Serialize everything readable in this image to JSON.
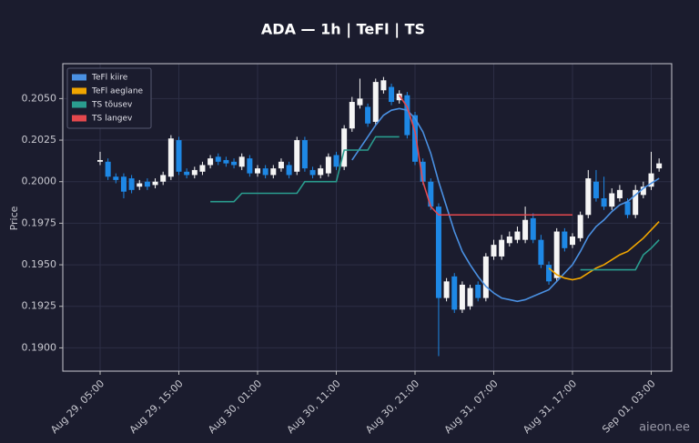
{
  "chart_data": {
    "type": "candlestick",
    "title": "ADA — 1h  |  TeFl  |  TS",
    "y_label": "Price",
    "watermark": "aieon.ee",
    "categories": [
      "Aug 29, 05:00",
      null,
      null,
      null,
      null,
      null,
      null,
      null,
      null,
      null,
      "Aug 29, 15:00",
      null,
      null,
      null,
      null,
      null,
      null,
      null,
      null,
      null,
      "Aug 30, 01:00",
      null,
      null,
      null,
      null,
      null,
      null,
      null,
      null,
      null,
      "Aug 30, 11:00",
      null,
      null,
      null,
      null,
      null,
      null,
      null,
      null,
      null,
      "Aug 30, 21:00",
      null,
      null,
      null,
      null,
      null,
      null,
      null,
      null,
      null,
      "Aug 31, 07:00",
      null,
      null,
      null,
      null,
      null,
      null,
      null,
      null,
      null,
      "Aug 31, 17:00",
      null,
      null,
      null,
      null,
      null,
      null,
      null,
      null,
      null,
      "Sep 01, 03:00",
      null
    ],
    "open": [
      0.2012,
      0.2012,
      0.2003,
      0.2003,
      0.2002,
      0.1997,
      0.2,
      0.1998,
      0.2,
      0.2003,
      0.2025,
      0.2006,
      0.2004,
      0.2006,
      0.201,
      0.2015,
      0.2013,
      0.2012,
      0.2009,
      0.2014,
      0.2005,
      0.2008,
      0.2004,
      0.2008,
      0.201,
      0.2006,
      0.2025,
      0.2007,
      0.2004,
      0.2005,
      0.2016,
      0.2009,
      0.2032,
      0.2046,
      0.2045,
      0.2036,
      0.2055,
      0.2057,
      0.2049,
      0.2052,
      0.204,
      0.2012,
      0.2,
      0.1985,
      0.193,
      0.1943,
      0.1923,
      0.1925,
      0.1938,
      0.193,
      0.1955,
      0.1955,
      0.1963,
      0.1965,
      0.1965,
      0.1978,
      0.1965,
      0.195,
      0.1942,
      0.197,
      0.1962,
      0.1966,
      0.198,
      0.2,
      0.199,
      0.1985,
      0.199,
      0.1988,
      0.198,
      0.1992,
      0.1997,
      0.2008
    ],
    "high": [
      0.2018,
      0.2014,
      0.2005,
      0.2005,
      0.2004,
      0.2001,
      0.2002,
      0.2002,
      0.2006,
      0.2028,
      0.2027,
      0.2008,
      0.2009,
      0.2012,
      0.2016,
      0.2017,
      0.2015,
      0.2014,
      0.2017,
      0.2016,
      0.201,
      0.201,
      0.201,
      0.2014,
      0.2012,
      0.2027,
      0.2027,
      0.2009,
      0.201,
      0.2017,
      0.2018,
      0.2034,
      0.2051,
      0.2062,
      0.2047,
      0.2062,
      0.2063,
      0.2059,
      0.2055,
      0.2054,
      0.2042,
      0.2014,
      0.2002,
      0.1987,
      0.1942,
      0.1945,
      0.194,
      0.1938,
      0.194,
      0.1957,
      0.1965,
      0.1968,
      0.197,
      0.1973,
      0.1985,
      0.1981,
      0.1968,
      0.1952,
      0.1972,
      0.1972,
      0.1969,
      0.1982,
      0.2007,
      0.2007,
      0.2003,
      0.1996,
      0.1998,
      0.199,
      0.1998,
      0.2,
      0.2018,
      0.2014
    ],
    "low": [
      0.201,
      0.2001,
      0.1999,
      0.199,
      0.1993,
      0.1995,
      0.1995,
      0.1996,
      0.1998,
      0.2001,
      0.2004,
      0.2002,
      0.2002,
      0.2004,
      0.2008,
      0.201,
      0.2009,
      0.2008,
      0.2007,
      0.2003,
      0.2003,
      0.2002,
      0.2002,
      0.2006,
      0.2002,
      0.2004,
      0.2006,
      0.2002,
      0.2002,
      0.2003,
      0.2007,
      0.2007,
      0.203,
      0.2044,
      0.2033,
      0.2034,
      0.2053,
      0.2046,
      0.2047,
      0.2026,
      0.201,
      0.1998,
      0.1983,
      0.1895,
      0.1928,
      0.1921,
      0.1921,
      0.1923,
      0.1928,
      0.1928,
      0.1953,
      0.1953,
      0.1961,
      0.1963,
      0.1963,
      0.1963,
      0.1948,
      0.1938,
      0.194,
      0.1958,
      0.196,
      0.1964,
      0.1978,
      0.1988,
      0.1983,
      0.1983,
      0.1988,
      0.1978,
      0.1978,
      0.199,
      0.1995,
      0.2006
    ],
    "close": [
      0.2013,
      0.2003,
      0.2001,
      0.1994,
      0.1995,
      0.1999,
      0.1997,
      0.2,
      0.2004,
      0.2026,
      0.2006,
      0.2004,
      0.2007,
      0.201,
      0.2014,
      0.2012,
      0.2011,
      0.201,
      0.2015,
      0.2005,
      0.2008,
      0.2004,
      0.2008,
      0.2012,
      0.2004,
      0.2025,
      0.2008,
      0.2004,
      0.2008,
      0.2015,
      0.2009,
      0.2032,
      0.2048,
      0.205,
      0.2035,
      0.206,
      0.2061,
      0.2048,
      0.2053,
      0.2028,
      0.2012,
      0.2,
      0.1985,
      0.193,
      0.194,
      0.1923,
      0.1938,
      0.1936,
      0.193,
      0.1955,
      0.1962,
      0.1965,
      0.1967,
      0.197,
      0.1977,
      0.1965,
      0.195,
      0.194,
      0.197,
      0.196,
      0.1967,
      0.198,
      0.2002,
      0.199,
      0.1985,
      0.1993,
      0.1995,
      0.198,
      0.1995,
      0.1997,
      0.2005,
      0.2011
    ],
    "up_color": "#f5f5f5",
    "down_color": "#1e88e5",
    "series": [
      {
        "name": "TeFl kiire",
        "color": "#4a90e2",
        "values": [
          null,
          null,
          null,
          null,
          null,
          null,
          null,
          null,
          null,
          null,
          null,
          null,
          null,
          null,
          null,
          null,
          null,
          null,
          null,
          null,
          null,
          null,
          null,
          null,
          null,
          null,
          null,
          null,
          null,
          null,
          null,
          null,
          0.2013,
          0.202,
          0.2027,
          0.2034,
          0.204,
          0.2043,
          0.2044,
          0.2043,
          0.2038,
          0.203,
          0.2017,
          0.2,
          0.1985,
          0.197,
          0.1958,
          0.195,
          0.1943,
          0.1937,
          0.1933,
          0.193,
          0.1929,
          0.1928,
          0.1929,
          0.1931,
          0.1933,
          0.1935,
          0.194,
          0.1945,
          0.195,
          0.1958,
          0.1967,
          0.1973,
          0.1977,
          0.1982,
          0.1986,
          0.1988,
          0.1992,
          0.1996,
          0.1999,
          0.2002
        ]
      },
      {
        "name": "TeFl aeglane",
        "color": "#f0a500",
        "values": [
          null,
          null,
          null,
          null,
          null,
          null,
          null,
          null,
          null,
          null,
          null,
          null,
          null,
          null,
          null,
          null,
          null,
          null,
          null,
          null,
          null,
          null,
          null,
          null,
          null,
          null,
          null,
          null,
          null,
          null,
          null,
          null,
          null,
          null,
          null,
          null,
          null,
          null,
          null,
          null,
          null,
          null,
          null,
          null,
          null,
          null,
          null,
          null,
          null,
          null,
          null,
          null,
          null,
          null,
          null,
          null,
          null,
          0.1948,
          0.1944,
          0.1942,
          0.1941,
          0.1942,
          0.1945,
          0.1948,
          0.195,
          0.1953,
          0.1956,
          0.1958,
          0.1962,
          0.1966,
          0.1971,
          0.1976
        ]
      },
      {
        "name": "TS tõusev",
        "color": "#2a9d8f",
        "values": [
          null,
          null,
          null,
          null,
          null,
          null,
          null,
          null,
          null,
          null,
          null,
          null,
          null,
          null,
          0.1988,
          0.1988,
          0.1988,
          0.1988,
          0.1993,
          0.1993,
          0.1993,
          0.1993,
          0.1993,
          0.1993,
          0.1993,
          0.1993,
          0.2,
          0.2,
          0.2,
          0.2,
          0.2,
          0.2019,
          0.2019,
          0.2019,
          0.2019,
          0.2027,
          0.2027,
          0.2027,
          0.2027,
          null,
          null,
          null,
          null,
          null,
          null,
          null,
          null,
          null,
          null,
          null,
          null,
          null,
          null,
          null,
          null,
          null,
          null,
          null,
          null,
          null,
          null,
          0.1947,
          0.1947,
          0.1947,
          0.1947,
          0.1947,
          0.1947,
          0.1947,
          0.1947,
          0.1956,
          0.196,
          0.1965
        ]
      },
      {
        "name": "TS langev",
        "color": "#e5484d",
        "values": [
          null,
          null,
          null,
          null,
          null,
          null,
          null,
          null,
          null,
          null,
          null,
          null,
          null,
          null,
          null,
          null,
          null,
          null,
          null,
          null,
          null,
          null,
          null,
          null,
          null,
          null,
          null,
          null,
          null,
          null,
          null,
          null,
          null,
          null,
          null,
          null,
          null,
          null,
          0.2052,
          0.2045,
          0.203,
          0.2,
          0.1985,
          0.198,
          0.198,
          0.198,
          0.198,
          0.198,
          0.198,
          0.198,
          0.198,
          0.198,
          0.198,
          0.198,
          0.198,
          0.198,
          0.198,
          0.198,
          0.198,
          0.198,
          0.198,
          null,
          null,
          null,
          null,
          null,
          null,
          null,
          null,
          null,
          null,
          null
        ]
      }
    ],
    "ylim": [
      0.1886,
      0.2071
    ],
    "yticks": [
      {
        "value": 0.19,
        "label": "0.1900"
      },
      0.1925,
      {
        "value": 0.195,
        "label": "0.1950"
      },
      0.1975,
      {
        "value": 0.2,
        "label": "0.2000"
      },
      0.2025,
      {
        "value": 0.205,
        "label": "0.2050"
      }
    ],
    "grid": true,
    "legend": "upper left"
  }
}
